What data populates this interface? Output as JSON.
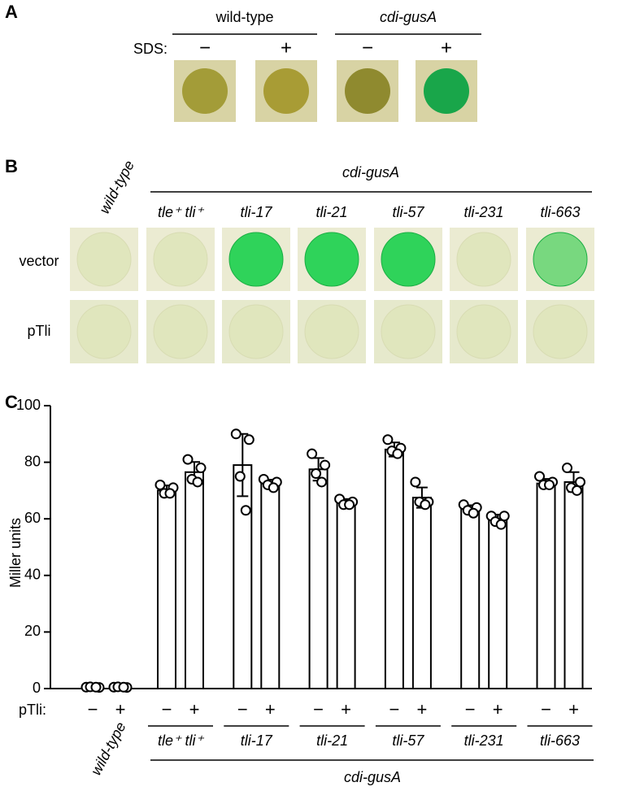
{
  "panel_a": {
    "label": "A",
    "groups": [
      "wild-type",
      "cdi-gusA"
    ],
    "row_label": "SDS:",
    "conditions": [
      "−",
      "+",
      "−",
      "+"
    ]
  },
  "panel_b": {
    "label": "B",
    "column_header": "cdi-gusA",
    "columns": [
      "wild-type",
      "tle⁺ tli⁺",
      "tli-17",
      "tli-21",
      "tli-57",
      "tli-231",
      "tli-663"
    ],
    "rows": [
      "vector",
      "pTli"
    ]
  },
  "chart_data": {
    "type": "bar",
    "label": "C",
    "y_label": "Miller units",
    "x_label": "pTli:",
    "group_label": "cdi-gusA",
    "categories": [
      "wild-type",
      "tle⁺ tli⁺",
      "tli-17",
      "tli-21",
      "tli-57",
      "tli-231",
      "tli-663"
    ],
    "series": [
      {
        "name": "−",
        "color": "#ffffff",
        "values": [
          0.5,
          70,
          79,
          77.5,
          84.5,
          63.5,
          72.5
        ],
        "errors": [
          0.3,
          1.8,
          11,
          4,
          2.5,
          1.3,
          1.6
        ],
        "points": [
          [
            0.5,
            0.4,
            0.6,
            0.5
          ],
          [
            72,
            71,
            69,
            69
          ],
          [
            90,
            88,
            75,
            63
          ],
          [
            83,
            79,
            76,
            73
          ],
          [
            88,
            85,
            84,
            83
          ],
          [
            65,
            64,
            63,
            62
          ],
          [
            75,
            73,
            72,
            72
          ]
        ]
      },
      {
        "name": "+",
        "color": "#ffffff",
        "values": [
          0.5,
          76.5,
          72.5,
          66,
          67.5,
          60,
          73
        ],
        "errors": [
          0.3,
          3.6,
          1.3,
          1,
          3.6,
          1.5,
          3.5
        ],
        "points": [
          [
            0.5,
            0.4,
            0.6,
            0.5
          ],
          [
            81,
            78,
            74,
            73
          ],
          [
            74,
            73,
            72,
            71
          ],
          [
            67,
            66,
            65,
            65
          ],
          [
            73,
            66,
            66,
            65
          ],
          [
            61,
            61,
            59,
            58
          ],
          [
            78,
            73,
            71,
            70
          ]
        ]
      }
    ],
    "ylim": [
      0,
      100
    ],
    "yticks": [
      0,
      20,
      40,
      60,
      80,
      100
    ],
    "grid": false
  }
}
